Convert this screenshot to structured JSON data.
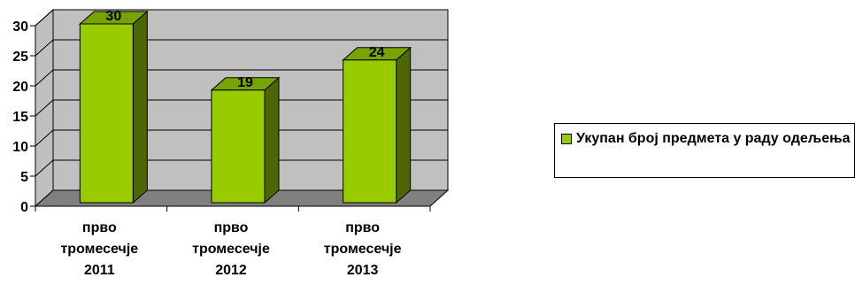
{
  "chart_data": {
    "type": "bar",
    "categories": [
      [
        "прво",
        "тромесечје",
        "2011"
      ],
      [
        "прво",
        "тромесечје",
        "2012"
      ],
      [
        "прво",
        "тромесечје",
        "2013"
      ]
    ],
    "series": [
      {
        "name": "Укупан број предмета у раду одељења",
        "values": [
          30,
          19,
          24
        ]
      }
    ],
    "ylim": [
      0,
      30
    ],
    "yticks": [
      "0",
      "5",
      "10",
      "15",
      "20",
      "25",
      "30"
    ],
    "grid": true,
    "legend": "right",
    "data_labels": [
      "30",
      "19",
      "24"
    ],
    "colors": {
      "bar_front": "#99cc00",
      "bar_side": "#4d6600",
      "bar_top": "#76a300",
      "wall": "#c0c0c0",
      "floor": "#808080"
    }
  }
}
